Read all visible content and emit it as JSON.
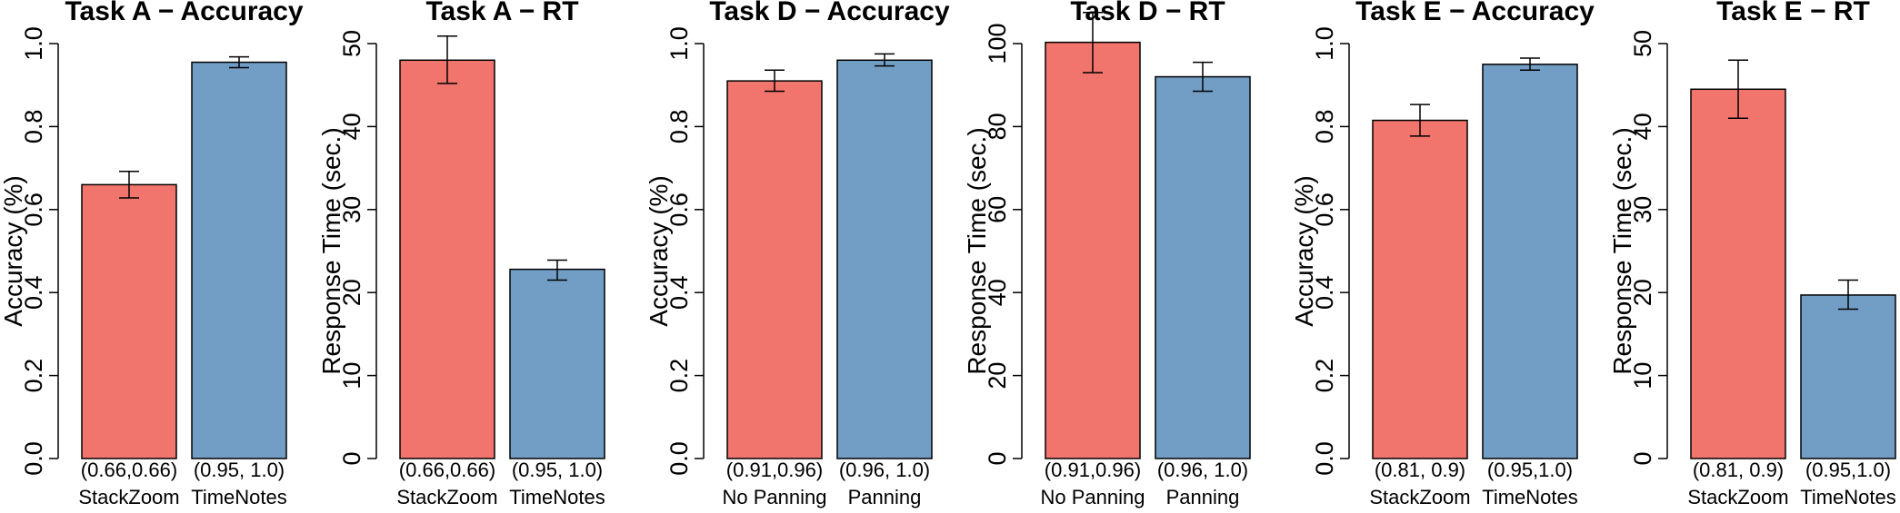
{
  "chart_data": [
    {
      "type": "bar",
      "title": "Task A − Accuracy",
      "ylabel": "Accuracy (%)",
      "ylim": [
        0,
        1.0
      ],
      "yticks": [
        "0.0",
        "0.2",
        "0.4",
        "0.6",
        "0.8",
        "1.0"
      ],
      "categories": [
        "StackZoom",
        "TimeNotes"
      ],
      "annotations": [
        "(0.66,0.66)",
        "(0.95, 1.0)"
      ],
      "values": [
        0.66,
        0.955
      ],
      "err_low": [
        0.628,
        0.942
      ],
      "err_high": [
        0.692,
        0.968
      ],
      "colors": [
        "#f1756d",
        "#729ec6"
      ]
    },
    {
      "type": "bar",
      "title": "Task A − RT",
      "ylabel": "Response Time (sec.)",
      "ylim": [
        0,
        50
      ],
      "yticks": [
        "0",
        "10",
        "20",
        "30",
        "40",
        "50"
      ],
      "categories": [
        "StackZoom",
        "TimeNotes"
      ],
      "annotations": [
        "(0.66,0.66)",
        "(0.95, 1.0)"
      ],
      "values": [
        48.0,
        22.8
      ],
      "err_low": [
        45.2,
        21.5
      ],
      "err_high": [
        50.9,
        23.9
      ],
      "colors": [
        "#f1756d",
        "#729ec6"
      ]
    },
    {
      "type": "bar",
      "title": "Task D − Accuracy",
      "ylabel": "Accuracy (%)",
      "ylim": [
        0,
        1.0
      ],
      "yticks": [
        "0.0",
        "0.2",
        "0.4",
        "0.6",
        "0.8",
        "1.0"
      ],
      "categories": [
        "No Panning",
        "Panning"
      ],
      "annotations": [
        "(0.91,0.96)",
        "(0.96, 1.0)"
      ],
      "values": [
        0.91,
        0.96
      ],
      "err_low": [
        0.885,
        0.946
      ],
      "err_high": [
        0.936,
        0.975
      ],
      "colors": [
        "#f1756d",
        "#729ec6"
      ]
    },
    {
      "type": "bar",
      "title": "Task D − RT",
      "ylabel": "Response Time (sec.)",
      "ylim": [
        0,
        100
      ],
      "yticks": [
        "0",
        "20",
        "40",
        "60",
        "80",
        "100"
      ],
      "categories": [
        "No Panning",
        "Panning"
      ],
      "annotations": [
        "(0.91,0.96)",
        "(0.96, 1.0)"
      ],
      "values": [
        100.3,
        92.0
      ],
      "err_low": [
        93.0,
        88.5
      ],
      "err_high": [
        107.5,
        95.5
      ],
      "colors": [
        "#f1756d",
        "#729ec6"
      ]
    },
    {
      "type": "bar",
      "title": "Task E − Accuracy",
      "ylabel": "Accuracy (%)",
      "ylim": [
        0,
        1.0
      ],
      "yticks": [
        "0.0",
        "0.2",
        "0.4",
        "0.6",
        "0.8",
        "1.0"
      ],
      "categories": [
        "StackZoom",
        "TimeNotes"
      ],
      "annotations": [
        "(0.81, 0.9)",
        "(0.95,1.0)"
      ],
      "values": [
        0.815,
        0.95
      ],
      "err_low": [
        0.777,
        0.936
      ],
      "err_high": [
        0.853,
        0.965
      ],
      "colors": [
        "#f1756d",
        "#729ec6"
      ]
    },
    {
      "type": "bar",
      "title": "Task E − RT",
      "ylabel": "Response Time (sec.)",
      "ylim": [
        0,
        50
      ],
      "yticks": [
        "0",
        "10",
        "20",
        "30",
        "40",
        "50"
      ],
      "categories": [
        "StackZoom",
        "TimeNotes"
      ],
      "annotations": [
        "(0.81, 0.9)",
        "(0.95,1.0)"
      ],
      "values": [
        44.5,
        19.7
      ],
      "err_low": [
        41.0,
        18.0
      ],
      "err_high": [
        48.0,
        21.5
      ],
      "colors": [
        "#f1756d",
        "#729ec6"
      ]
    }
  ]
}
